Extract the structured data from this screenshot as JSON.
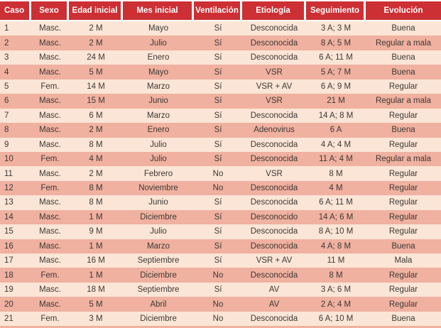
{
  "colors": {
    "header_bg": "#cc2f34",
    "header_text": "#ffffff",
    "row_light": "#fbe5d6",
    "row_dark": "#f0b1a0",
    "body_text": "#3d3935"
  },
  "table": {
    "columns": [
      "Caso",
      "Sexo",
      "Edad inicial",
      "Mes inicial",
      "Ventilación",
      "Etiología",
      "Seguimiento",
      "Evolución"
    ],
    "rows": [
      [
        "1",
        "Masc.",
        "2 M",
        "Mayo",
        "Sí",
        "Desconocida",
        "3 A; 3 M",
        "Buena"
      ],
      [
        "2",
        "Masc.",
        "2 M",
        "Julio",
        "Sí",
        "Desconocida",
        "8 A; 5 M",
        "Regular a mala"
      ],
      [
        "3",
        "Masc.",
        "24 M",
        "Enero",
        "Sí",
        "Desconocida",
        "6 A; 11 M",
        "Buena"
      ],
      [
        "4",
        "Masc.",
        "5 M",
        "Mayo",
        "Sí",
        "VSR",
        "5 A; 7 M",
        "Buena"
      ],
      [
        "5",
        "Fem.",
        "14 M",
        "Marzo",
        "Sí",
        "VSR + AV",
        "6 A; 9 M",
        "Regular"
      ],
      [
        "6",
        "Masc.",
        "15 M",
        "Junio",
        "Sí",
        "VSR",
        "21 M",
        "Regular a mala"
      ],
      [
        "7",
        "Masc.",
        "6 M",
        "Marzo",
        "Sí",
        "Desconocida",
        "14 A; 8 M",
        "Regular"
      ],
      [
        "8",
        "Masc.",
        "2 M",
        "Enero",
        "Sí",
        "Adenovirus",
        "6 A",
        "Buena"
      ],
      [
        "9",
        "Masc.",
        "8 M",
        "Julio",
        "Sí",
        "Desconocida",
        "4 A; 4 M",
        "Regular"
      ],
      [
        "10",
        "Fem.",
        "4 M",
        "Julio",
        "Sí",
        "Desconocida",
        "11 A; 4 M",
        "Regular a mala"
      ],
      [
        "11",
        "Masc.",
        "2 M",
        "Febrero",
        "No",
        "VSR",
        "8 M",
        "Regular"
      ],
      [
        "12",
        "Fem.",
        "8 M",
        "Noviembre",
        "No",
        "Desconocida",
        "4 M",
        "Regular"
      ],
      [
        "13",
        "Masc.",
        "8 M",
        "Junio",
        "Sí",
        "Desconocida",
        "6 A; 11 M",
        "Regular"
      ],
      [
        "14",
        "Masc.",
        "1 M",
        "Diciembre",
        "Sí",
        "Desconocido",
        "14 A; 6 M",
        "Regular"
      ],
      [
        "15",
        "Masc.",
        "9 M",
        "Julio",
        "Sí",
        "Desconocida",
        "8 A; 10 M",
        "Regular"
      ],
      [
        "16",
        "Masc.",
        "1 M",
        "Marzo",
        "Sí",
        "Desconocida",
        "4 A; 8 M",
        "Buena"
      ],
      [
        "17",
        "Masc.",
        "16 M",
        "Septiembre",
        "Sí",
        "VSR + AV",
        "11 M",
        "Mala"
      ],
      [
        "18",
        "Fem.",
        "1 M",
        "Diciembre",
        "No",
        "Desconocida",
        "8 M",
        "Regular"
      ],
      [
        "19",
        "Masc.",
        "18 M",
        "Septiembre",
        "Sí",
        "AV",
        "3 A; 6 M",
        "Regular"
      ],
      [
        "20",
        "Masc.",
        "5 M",
        "Abril",
        "No",
        "AV",
        "2 A; 4 M",
        "Regular"
      ],
      [
        "21",
        "Fem.",
        "3 M",
        "Diciembre",
        "No",
        "Desconocida",
        "6 A; 10 M",
        "Buena"
      ]
    ]
  }
}
